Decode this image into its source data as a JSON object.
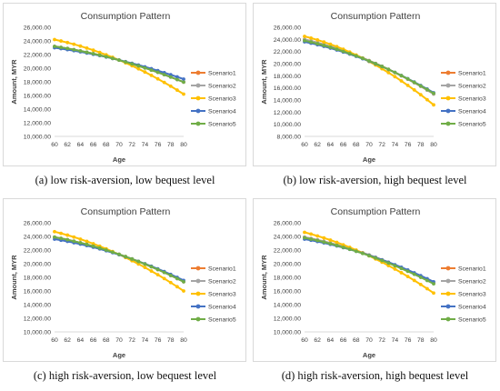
{
  "colors": {
    "Scenario1": "#ed7d31",
    "Scenario2": "#a5a5a5",
    "Scenario3": "#ffc000",
    "Scenario4": "#4472c4",
    "Scenario5": "#70ad47"
  },
  "captions": [
    "(a) low risk-aversion, low bequest level",
    "(b) low risk-aversion, high bequest level",
    "(c) high risk-aversion, low bequest level",
    "(d) high risk-aversion, high bequest level"
  ],
  "chart_data": [
    {
      "type": "line",
      "title": "Consumption Pattern",
      "xlabel": "Age",
      "ylabel": "Amount, MYR",
      "x": [
        60,
        61,
        62,
        63,
        64,
        65,
        66,
        67,
        68,
        69,
        70,
        71,
        72,
        73,
        74,
        75,
        76,
        77,
        78,
        79,
        80
      ],
      "xticks": [
        60,
        62,
        64,
        66,
        68,
        70,
        72,
        74,
        76,
        78,
        80
      ],
      "ylim": [
        10000,
        26000
      ],
      "yticks": [
        "10,000.00",
        "12,000.00",
        "14,000.00",
        "16,000.00",
        "18,000.00",
        "20,000.00",
        "22,000.00",
        "24,000.00",
        "26,000.00"
      ],
      "legend_position": "right",
      "grid": false,
      "series": [
        {
          "name": "Scenario1",
          "values": [
            23200,
            23052,
            22892,
            22720,
            22536,
            22340,
            22132,
            21912,
            21680,
            21436,
            21180,
            20912,
            20632,
            20340,
            20036,
            19720,
            19392,
            19052,
            18700,
            18336,
            17960
          ]
        },
        {
          "name": "Scenario2",
          "values": [
            23200,
            23052,
            22892,
            22720,
            22536,
            22340,
            22132,
            21912,
            21680,
            21436,
            21180,
            20912,
            20632,
            20340,
            20036,
            19720,
            19392,
            19052,
            18700,
            18336,
            17960
          ]
        },
        {
          "name": "Scenario3",
          "values": [
            24200,
            23990,
            23760,
            23510,
            23240,
            22950,
            22640,
            22310,
            21960,
            21590,
            21200,
            20790,
            20360,
            19910,
            19440,
            18950,
            18440,
            17910,
            17360,
            16790,
            16200
          ]
        },
        {
          "name": "Scenario4",
          "values": [
            23000,
            22865,
            22720,
            22565,
            22400,
            22225,
            22040,
            21845,
            21640,
            21425,
            21200,
            20965,
            20720,
            20465,
            20200,
            19925,
            19640,
            19345,
            19040,
            18725,
            18400
          ]
        },
        {
          "name": "Scenario5",
          "values": [
            23200,
            23052,
            22892,
            22720,
            22536,
            22340,
            22132,
            21912,
            21680,
            21436,
            21180,
            20912,
            20632,
            20340,
            20036,
            19720,
            19392,
            19052,
            18700,
            18336,
            17960
          ]
        }
      ]
    },
    {
      "type": "line",
      "title": "Consumption Pattern",
      "xlabel": "Age",
      "ylabel": "Amount, MYR",
      "x": [
        60,
        61,
        62,
        63,
        64,
        65,
        66,
        67,
        68,
        69,
        70,
        71,
        72,
        73,
        74,
        75,
        76,
        77,
        78,
        79,
        80
      ],
      "xticks": [
        60,
        62,
        64,
        66,
        68,
        70,
        72,
        74,
        76,
        78,
        80
      ],
      "ylim": [
        8000,
        26000
      ],
      "yticks": [
        "8,000.00",
        "10,000.00",
        "12,000.00",
        "14,000.00",
        "16,000.00",
        "18,000.00",
        "20,000.00",
        "22,000.00",
        "24,000.00",
        "26,000.00"
      ],
      "legend_position": "right",
      "grid": false,
      "series": [
        {
          "name": "Scenario1",
          "values": [
            24000,
            23740,
            23460,
            23160,
            22840,
            22500,
            22140,
            21760,
            21360,
            20940,
            20500,
            20040,
            19560,
            19060,
            18540,
            18000,
            17440,
            16860,
            16260,
            15640,
            15000
          ]
        },
        {
          "name": "Scenario2",
          "values": [
            24000,
            23740,
            23460,
            23160,
            22840,
            22500,
            22140,
            21760,
            21360,
            20940,
            20500,
            20040,
            19560,
            19060,
            18540,
            18000,
            17440,
            16860,
            16260,
            15640,
            15000
          ]
        },
        {
          "name": "Scenario3",
          "values": [
            24500,
            24220,
            23910,
            23570,
            23200,
            22800,
            22370,
            21910,
            21420,
            20900,
            20350,
            19770,
            19160,
            18520,
            17850,
            17150,
            16420,
            15660,
            14870,
            14050,
            13200
          ]
        },
        {
          "name": "Scenario4",
          "values": [
            23600,
            23370,
            23120,
            22850,
            22560,
            22250,
            21920,
            21570,
            21200,
            20810,
            20400,
            19970,
            19520,
            19050,
            18560,
            18050,
            17520,
            16970,
            16400,
            15810,
            15200
          ]
        },
        {
          "name": "Scenario5",
          "values": [
            23800,
            23555,
            23290,
            23005,
            22700,
            22375,
            22030,
            21665,
            21280,
            20875,
            20450,
            20005,
            19540,
            19055,
            18550,
            18025,
            17480,
            16915,
            16330,
            15725,
            15100
          ]
        }
      ]
    },
    {
      "type": "line",
      "title": "Consumption Pattern",
      "xlabel": "Age",
      "ylabel": "Amount, MYR",
      "x": [
        60,
        61,
        62,
        63,
        64,
        65,
        66,
        67,
        68,
        69,
        70,
        71,
        72,
        73,
        74,
        75,
        76,
        77,
        78,
        79,
        80
      ],
      "xticks": [
        60,
        62,
        64,
        66,
        68,
        70,
        72,
        74,
        76,
        78,
        80
      ],
      "ylim": [
        10000,
        26000
      ],
      "yticks": [
        "10,000.00",
        "12,000.00",
        "14,000.00",
        "16,000.00",
        "18,000.00",
        "20,000.00",
        "22,000.00",
        "24,000.00",
        "26,000.00"
      ],
      "legend_position": "right",
      "grid": false,
      "series": [
        {
          "name": "Scenario1",
          "values": [
            23900,
            23715,
            23515,
            23300,
            23070,
            22825,
            22565,
            22290,
            22000,
            21695,
            21375,
            21040,
            20690,
            20325,
            19945,
            19550,
            19140,
            18715,
            18275,
            17820,
            17350
          ]
        },
        {
          "name": "Scenario2",
          "values": [
            23900,
            23715,
            23515,
            23300,
            23070,
            22825,
            22565,
            22290,
            22000,
            21695,
            21375,
            21040,
            20690,
            20325,
            19945,
            19550,
            19140,
            18715,
            18275,
            17820,
            17350
          ]
        },
        {
          "name": "Scenario3",
          "values": [
            24700,
            24455,
            24190,
            23905,
            23600,
            23275,
            22930,
            22565,
            22180,
            21775,
            21350,
            20905,
            20440,
            19955,
            19450,
            18925,
            18380,
            17815,
            17230,
            16625,
            16000
          ]
        },
        {
          "name": "Scenario4",
          "values": [
            23600,
            23440,
            23265,
            23075,
            22870,
            22650,
            22415,
            22165,
            21900,
            21620,
            21325,
            21015,
            20690,
            20350,
            19995,
            19625,
            19240,
            18840,
            18425,
            17995,
            17550
          ]
        },
        {
          "name": "Scenario5",
          "values": [
            23900,
            23715,
            23515,
            23300,
            23070,
            22825,
            22565,
            22290,
            22000,
            21695,
            21375,
            21040,
            20690,
            20325,
            19945,
            19550,
            19140,
            18715,
            18275,
            17820,
            17350
          ]
        }
      ]
    },
    {
      "type": "line",
      "title": "Consumption Pattern",
      "xlabel": "Age",
      "ylabel": "Amount, MYR",
      "x": [
        60,
        61,
        62,
        63,
        64,
        65,
        66,
        67,
        68,
        69,
        70,
        71,
        72,
        73,
        74,
        75,
        76,
        77,
        78,
        79,
        80
      ],
      "xticks": [
        60,
        62,
        64,
        66,
        68,
        70,
        72,
        74,
        76,
        78,
        80
      ],
      "ylim": [
        10000,
        26000
      ],
      "yticks": [
        "10,000.00",
        "12,000.00",
        "14,000.00",
        "16,000.00",
        "18,000.00",
        "20,000.00",
        "22,000.00",
        "24,000.00",
        "26,000.00"
      ],
      "legend_position": "right",
      "grid": false,
      "series": [
        {
          "name": "Scenario1",
          "values": [
            23900,
            23705,
            23495,
            23270,
            23030,
            22775,
            22505,
            22220,
            21920,
            21605,
            21275,
            20930,
            20570,
            20195,
            19805,
            19400,
            18980,
            18545,
            18095,
            17630,
            17150
          ]
        },
        {
          "name": "Scenario2",
          "values": [
            23900,
            23705,
            23495,
            23270,
            23030,
            22775,
            22505,
            22220,
            21920,
            21605,
            21275,
            20930,
            20570,
            20195,
            19805,
            19400,
            18980,
            18545,
            18095,
            17630,
            17150
          ]
        },
        {
          "name": "Scenario3",
          "values": [
            24600,
            24345,
            24070,
            23775,
            23460,
            23125,
            22770,
            22395,
            22000,
            21585,
            21150,
            20695,
            20220,
            19725,
            19210,
            18675,
            18120,
            17545,
            16950,
            16335,
            15700
          ]
        },
        {
          "name": "Scenario4",
          "values": [
            23600,
            23430,
            23245,
            23045,
            22830,
            22600,
            22355,
            22095,
            21820,
            21530,
            21225,
            20905,
            20570,
            20220,
            19855,
            19475,
            19080,
            18670,
            18245,
            17805,
            17350
          ]
        },
        {
          "name": "Scenario5",
          "values": [
            23800,
            23605,
            23395,
            23170,
            22930,
            22675,
            22405,
            22120,
            21820,
            21505,
            21175,
            20830,
            20470,
            20095,
            19705,
            19300,
            18880,
            18445,
            17995,
            17530,
            17050
          ]
        }
      ]
    }
  ]
}
